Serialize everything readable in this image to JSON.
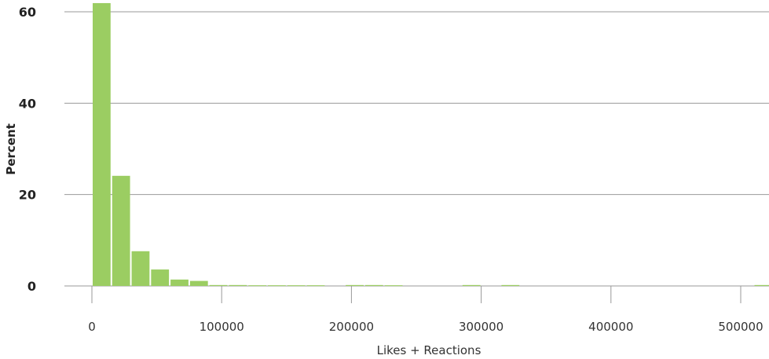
{
  "chart_data": {
    "type": "bar",
    "subtype": "histogram",
    "xlabel": "Likes + Reactions",
    "ylabel": "Percent",
    "xlim": [
      -10000,
      525000
    ],
    "ylim": [
      0,
      62
    ],
    "bin_width": 15000,
    "bin_starts": [
      0,
      15000,
      30000,
      45000,
      60000,
      75000,
      90000,
      105000,
      120000,
      135000,
      150000,
      165000,
      180000,
      195000,
      210000,
      225000,
      240000,
      255000,
      270000,
      285000,
      300000,
      315000,
      330000,
      345000,
      360000,
      375000,
      390000,
      405000,
      420000,
      435000,
      450000,
      465000,
      480000,
      495000,
      510000
    ],
    "values": [
      61.9,
      24.1,
      7.6,
      3.6,
      1.4,
      1.1,
      0.2,
      0.2,
      0.15,
      0.15,
      0.15,
      0.15,
      0,
      0.2,
      0.2,
      0.15,
      0,
      0,
      0,
      0.2,
      0,
      0.2,
      0,
      0,
      0,
      0,
      0,
      0,
      0,
      0,
      0,
      0,
      0,
      0,
      0.2
    ],
    "yticks": [
      0,
      20,
      40,
      60
    ],
    "xticks": [
      0,
      100000,
      200000,
      300000,
      400000,
      500000
    ],
    "grid": "horizontal",
    "legend": "none",
    "bar_color": "#9bcd62",
    "grid_color": "#999999"
  }
}
